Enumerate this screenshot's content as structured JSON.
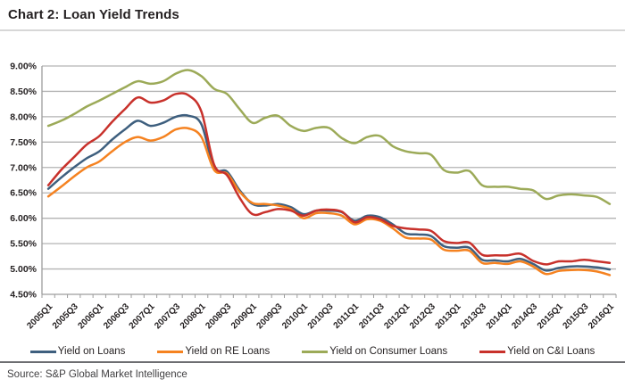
{
  "header": {
    "title": "Chart 2: Loan Yield Trends"
  },
  "source": {
    "text": "Source: S&P Global Market Intelligence"
  },
  "colors": {
    "loans": "#3e5f7e",
    "re_loans": "#f58220",
    "consumer_loans": "#9caa58",
    "ci_loans": "#c8312b",
    "gridline": "#b3b3b3",
    "axis": "#9d9d9d",
    "tick_label": "#231f20"
  },
  "chart_data": {
    "type": "line",
    "smoothed": true,
    "title": "",
    "xlabel": "",
    "ylabel": "",
    "ylim": [
      4.5,
      9.0
    ],
    "y_tick_step": 0.5,
    "y_ticks": [
      "9.00%",
      "8.50%",
      "8.00%",
      "7.50%",
      "7.00%",
      "6.50%",
      "6.00%",
      "5.50%",
      "5.00%",
      "4.50%"
    ],
    "grid": "horizontal",
    "legend_position": "bottom",
    "x": [
      "2005Q1",
      "2005Q2",
      "2005Q3",
      "2005Q4",
      "2006Q1",
      "2006Q2",
      "2006Q3",
      "2006Q4",
      "2007Q1",
      "2007Q2",
      "2007Q3",
      "2007Q4",
      "2008Q1",
      "2008Q2",
      "2008Q3",
      "2008Q4",
      "2009Q1",
      "2009Q2",
      "2009Q3",
      "2009Q4",
      "2010Q1",
      "2010Q2",
      "2010Q3",
      "2010Q4",
      "2011Q1",
      "2011Q2",
      "2011Q3",
      "2011Q4",
      "2012Q1",
      "2012Q2",
      "2012Q3",
      "2012Q4",
      "2013Q1",
      "2013Q2",
      "2013Q3",
      "2013Q4",
      "2014Q1",
      "2014Q2",
      "2014Q3",
      "2014Q4",
      "2015Q1",
      "2015Q2",
      "2015Q3",
      "2015Q4",
      "2016Q1"
    ],
    "x_ticks_shown": [
      "2005Q1",
      "2005Q3",
      "2006Q1",
      "2006Q3",
      "2007Q1",
      "2007Q3",
      "2008Q1",
      "2008Q3",
      "2009Q1",
      "2009Q3",
      "2010Q1",
      "2010Q3",
      "2011Q1",
      "2011Q3",
      "2012Q1",
      "2012Q3",
      "2013Q1",
      "2013Q3",
      "2014Q1",
      "2014Q3",
      "2015Q1",
      "2015Q3",
      "2016Q1"
    ],
    "series": [
      {
        "name": "Yield on Loans",
        "color": "#3e5f7e",
        "values": [
          6.58,
          6.8,
          7.0,
          7.18,
          7.32,
          7.55,
          7.75,
          7.92,
          7.82,
          7.88,
          8.0,
          8.02,
          7.85,
          7.0,
          6.92,
          6.55,
          6.28,
          6.25,
          6.28,
          6.22,
          6.08,
          6.15,
          6.15,
          6.12,
          5.95,
          6.05,
          6.02,
          5.88,
          5.7,
          5.68,
          5.65,
          5.45,
          5.42,
          5.42,
          5.18,
          5.17,
          5.15,
          5.2,
          5.1,
          4.97,
          5.02,
          5.05,
          5.05,
          5.03,
          4.99
        ]
      },
      {
        "name": "Yield on RE Loans",
        "color": "#f58220",
        "values": [
          6.43,
          6.62,
          6.82,
          7.0,
          7.12,
          7.32,
          7.5,
          7.6,
          7.53,
          7.6,
          7.75,
          7.77,
          7.6,
          6.95,
          6.88,
          6.52,
          6.3,
          6.28,
          6.25,
          6.18,
          6.0,
          6.1,
          6.1,
          6.05,
          5.88,
          5.98,
          5.95,
          5.8,
          5.62,
          5.6,
          5.58,
          5.38,
          5.36,
          5.36,
          5.12,
          5.12,
          5.1,
          5.15,
          5.05,
          4.9,
          4.96,
          4.98,
          4.98,
          4.95,
          4.88
        ]
      },
      {
        "name": "Yield on Consumer Loans",
        "color": "#9caa58",
        "values": [
          7.82,
          7.92,
          8.05,
          8.2,
          8.32,
          8.45,
          8.58,
          8.7,
          8.65,
          8.7,
          8.85,
          8.92,
          8.8,
          8.55,
          8.45,
          8.15,
          7.88,
          7.98,
          8.02,
          7.82,
          7.72,
          7.78,
          7.78,
          7.58,
          7.48,
          7.6,
          7.62,
          7.42,
          7.32,
          7.28,
          7.25,
          6.95,
          6.9,
          6.93,
          6.65,
          6.62,
          6.62,
          6.58,
          6.55,
          6.38,
          6.45,
          6.47,
          6.45,
          6.42,
          6.28
        ]
      },
      {
        "name": "Yield on C&I Loans",
        "color": "#c8312b",
        "values": [
          6.65,
          6.95,
          7.2,
          7.45,
          7.62,
          7.9,
          8.15,
          8.38,
          8.28,
          8.32,
          8.45,
          8.42,
          8.1,
          7.05,
          6.85,
          6.4,
          6.08,
          6.12,
          6.18,
          6.15,
          6.05,
          6.15,
          6.17,
          6.13,
          5.92,
          6.02,
          5.98,
          5.85,
          5.8,
          5.78,
          5.75,
          5.55,
          5.51,
          5.52,
          5.28,
          5.27,
          5.27,
          5.3,
          5.16,
          5.09,
          5.15,
          5.15,
          5.18,
          5.15,
          5.12
        ]
      }
    ]
  }
}
